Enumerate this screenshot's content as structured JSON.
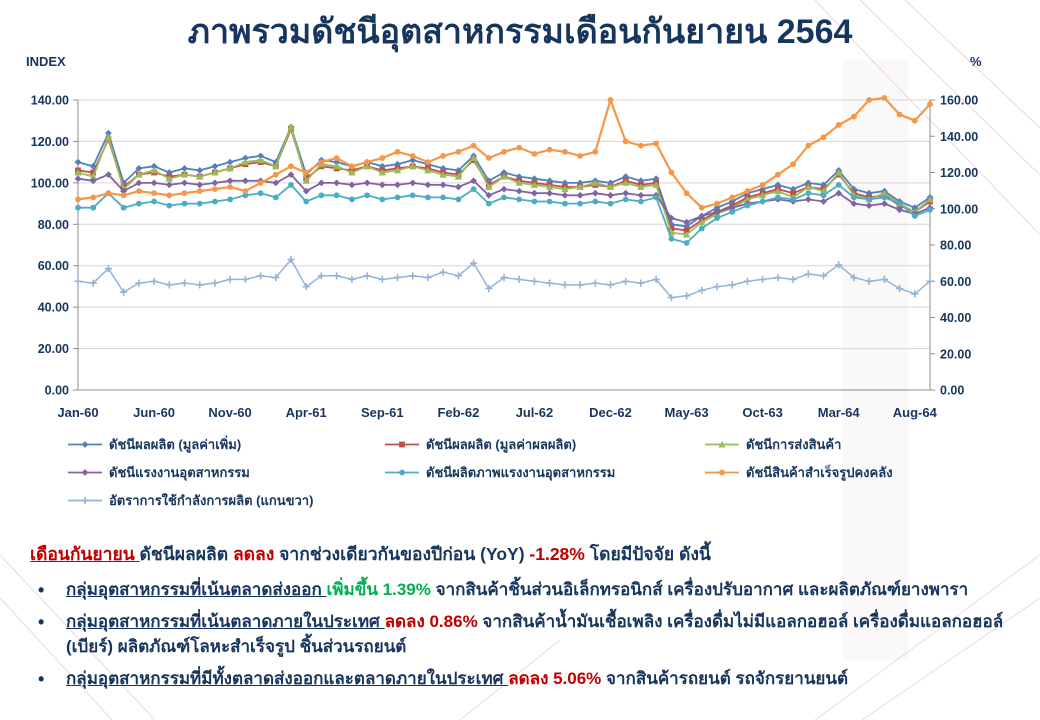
{
  "title": "ภาพรวมดัชนีอุตสาหกรรมเดือนกันยายน 2564",
  "axes": {
    "left_label": "INDEX",
    "right_label": "%",
    "left_ticks": [
      "140.00",
      "120.00",
      "100.00",
      "80.00",
      "60.00",
      "40.00",
      "20.00",
      "0.00"
    ],
    "right_ticks": [
      "160.00",
      "140.00",
      "120.00",
      "100.00",
      "80.00",
      "60.00",
      "40.00",
      "20.00",
      "0.00"
    ]
  },
  "colors": {
    "title_text": "#17365D",
    "body_text": "#17365D",
    "negative": "#C00000",
    "positive": "#00B050"
  },
  "chart_data": {
    "type": "line",
    "title": "ภาพรวมดัชนีอุตสาหกรรมเดือนกันยายน 2564",
    "xlabel": "",
    "ylabel_left": "INDEX",
    "ylabel_right": "%",
    "left_ylim": [
      0,
      140
    ],
    "right_ylim": [
      0,
      160
    ],
    "grid_step": 20,
    "grid": true,
    "legend_position": "bottom",
    "x": [
      "Jan-60",
      "Feb-60",
      "Mar-60",
      "Apr-60",
      "May-60",
      "Jun-60",
      "Jul-60",
      "Aug-60",
      "Sep-60",
      "Oct-60",
      "Nov-60",
      "Dec-60",
      "Jan-61",
      "Feb-61",
      "Mar-61",
      "Apr-61",
      "May-61",
      "Jun-61",
      "Jul-61",
      "Aug-61",
      "Sep-61",
      "Oct-61",
      "Nov-61",
      "Dec-61",
      "Jan-62",
      "Feb-62",
      "Mar-62",
      "Apr-62",
      "May-62",
      "Jun-62",
      "Jul-62",
      "Aug-62",
      "Sep-62",
      "Oct-62",
      "Nov-62",
      "Dec-62",
      "Jan-63",
      "Feb-63",
      "Mar-63",
      "Apr-63",
      "May-63",
      "Jun-63",
      "Jul-63",
      "Aug-63",
      "Sep-63",
      "Oct-63",
      "Nov-63",
      "Dec-63",
      "Jan-64",
      "Feb-64",
      "Mar-64",
      "Apr-64",
      "May-64",
      "Jun-64",
      "Jul-64",
      "Aug-64",
      "Sep-64"
    ],
    "x_tick_labels": [
      "Jan-60",
      "Jun-60",
      "Nov-60",
      "Apr-61",
      "Sep-61",
      "Feb-62",
      "Jul-62",
      "Dec-62",
      "May-63",
      "Oct-63",
      "Mar-64",
      "Aug-64"
    ],
    "series": [
      {
        "name": "ดัชนีผลผลิต (มูลค่าเพิ่ม)",
        "color": "#4F81BD",
        "marker": "diamond",
        "axis": "left",
        "width": 1.8,
        "values": [
          110,
          108,
          124,
          100,
          107,
          108,
          105,
          107,
          106,
          108,
          110,
          112,
          113,
          110,
          127,
          104,
          111,
          110,
          108,
          110,
          108,
          109,
          111,
          109,
          107,
          106,
          113,
          101,
          105,
          103,
          102,
          101,
          100,
          100,
          101,
          100,
          103,
          101,
          102,
          80,
          79,
          84,
          88,
          91,
          95,
          97,
          99,
          97,
          100,
          99,
          106,
          97,
          95,
          96,
          91,
          88,
          93
        ]
      },
      {
        "name": "ดัชนีผลผลิต (มูลค่าผลผลิต)",
        "color": "#C0504D",
        "marker": "square",
        "axis": "left",
        "width": 1.8,
        "values": [
          106,
          105,
          121,
          98,
          104,
          105,
          103,
          104,
          103,
          105,
          107,
          109,
          110,
          108,
          126,
          102,
          108,
          107,
          106,
          108,
          106,
          107,
          108,
          107,
          105,
          104,
          111,
          99,
          103,
          101,
          100,
          99,
          98,
          98,
          99,
          98,
          101,
          99,
          100,
          78,
          77,
          82,
          86,
          89,
          93,
          95,
          97,
          95,
          98,
          97,
          104,
          95,
          93,
          94,
          89,
          86,
          91
        ]
      },
      {
        "name": "ดัชนีการส่งสินค้า",
        "color": "#9BBB59",
        "marker": "triangle",
        "axis": "left",
        "width": 1.8,
        "values": [
          105,
          103,
          122,
          97,
          104,
          106,
          102,
          104,
          103,
          105,
          107,
          110,
          111,
          108,
          127,
          101,
          109,
          108,
          105,
          108,
          105,
          106,
          108,
          106,
          104,
          103,
          112,
          98,
          103,
          100,
          99,
          98,
          97,
          98,
          100,
          98,
          100,
          98,
          99,
          76,
          75,
          81,
          85,
          88,
          92,
          94,
          96,
          93,
          98,
          96,
          105,
          94,
          92,
          95,
          90,
          86,
          92
        ]
      },
      {
        "name": "ดัชนีแรงงานอุตสาหกรรม",
        "color": "#8064A2",
        "marker": "diamond",
        "axis": "left",
        "width": 1.8,
        "values": [
          102,
          101,
          104,
          96,
          100,
          100,
          99,
          100,
          99,
          100,
          101,
          101,
          101,
          100,
          104,
          96,
          100,
          100,
          99,
          100,
          99,
          99,
          100,
          99,
          99,
          98,
          101,
          94,
          97,
          96,
          95,
          95,
          94,
          94,
          95,
          94,
          95,
          94,
          94,
          83,
          81,
          84,
          86,
          88,
          90,
          91,
          92,
          91,
          92,
          91,
          95,
          90,
          89,
          90,
          87,
          85,
          88
        ]
      },
      {
        "name": "ดัชนีผลิตภาพแรงงานอุตสาหกรรม",
        "color": "#4BACC6",
        "marker": "circle",
        "axis": "left",
        "width": 1.8,
        "values": [
          88,
          88,
          95,
          88,
          90,
          91,
          89,
          90,
          90,
          91,
          92,
          94,
          95,
          93,
          99,
          91,
          94,
          94,
          92,
          94,
          92,
          93,
          94,
          93,
          93,
          92,
          97,
          90,
          93,
          92,
          91,
          91,
          90,
          90,
          91,
          90,
          92,
          91,
          93,
          73,
          71,
          78,
          83,
          86,
          89,
          91,
          93,
          92,
          95,
          94,
          99,
          93,
          92,
          93,
          90,
          84,
          87
        ]
      },
      {
        "name": "ดัชนีสินค้าสำเร็จรูปคงคลัง",
        "color": "#F79646",
        "marker": "circle",
        "axis": "left",
        "width": 2.2,
        "values": [
          92,
          93,
          95,
          94,
          96,
          95,
          94,
          95,
          96,
          97,
          98,
          96,
          100,
          104,
          108,
          105,
          110,
          112,
          108,
          110,
          112,
          115,
          113,
          110,
          113,
          115,
          118,
          112,
          115,
          117,
          114,
          116,
          115,
          113,
          115,
          140,
          120,
          118,
          119,
          105,
          95,
          88,
          90,
          93,
          96,
          99,
          104,
          109,
          118,
          122,
          128,
          132,
          140,
          141,
          133,
          130,
          138
        ]
      },
      {
        "name": "อัตราการใช้กำลังการผลิต (แกนขวา)",
        "color": "#95B3D7",
        "marker": "plus",
        "axis": "right",
        "width": 1.5,
        "values": [
          60,
          59,
          67,
          54,
          59,
          60,
          58,
          59,
          58,
          59,
          61,
          61,
          63,
          62,
          72,
          57,
          63,
          63,
          61,
          63,
          61,
          62,
          63,
          62,
          65,
          63,
          70,
          56,
          62,
          61,
          60,
          59,
          58,
          58,
          59,
          58,
          60,
          59,
          61,
          51,
          52,
          55,
          57,
          58,
          60,
          61,
          62,
          61,
          64,
          63,
          69,
          62,
          60,
          61,
          56,
          53,
          60
        ]
      }
    ]
  },
  "summary": {
    "intro": [
      {
        "text": "เดือนกันยายน ",
        "style": "red-underline"
      },
      {
        "text": "ดัชนีผลผลิต ",
        "style": "blue"
      },
      {
        "text": "ลดลง ",
        "style": "red"
      },
      {
        "text": "จากช่วงเดียวกันของปีก่อน (YoY) ",
        "style": "blue"
      },
      {
        "text": "-1.28% ",
        "style": "red"
      },
      {
        "text": "โดยมีปัจจัย ดังนี้",
        "style": "blue"
      }
    ],
    "bullets": [
      [
        {
          "text": "กลุ่มอุตสาหกรรมที่เน้นตลาดส่งออก ",
          "style": "blue-underline"
        },
        {
          "text": "เพิ่มขึ้น 1.39% ",
          "style": "green"
        },
        {
          "text": "จากสินค้าชิ้นส่วนอิเล็กทรอนิกส์ เครื่องปรับอากาศ และผลิตภัณฑ์ยางพารา",
          "style": "blue"
        }
      ],
      [
        {
          "text": "กลุ่มอุตสาหกรรมที่เน้นตลาดภายในประเทศ ",
          "style": "blue-underline"
        },
        {
          "text": "ลดลง 0.86% ",
          "style": "red"
        },
        {
          "text": "จากสินค้าน้ำมันเชื้อเพลิง เครื่องดื่มไม่มีแอลกอฮอล์ เครื่องดื่มแอลกอฮอล์ (เบียร์) ผลิตภัณฑ์โลหะสำเร็จรูป ชิ้นส่วนรถยนต์",
          "style": "blue"
        }
      ],
      [
        {
          "text": "กลุ่มอุตสาหกรรมที่มีทั้งตลาดส่งออกและตลาดภายในประเทศ ",
          "style": "blue-underline"
        },
        {
          "text": "ลดลง 5.06% ",
          "style": "red"
        },
        {
          "text": "จากสินค้ารถยนต์ รถจักรยานยนต์",
          "style": "blue"
        }
      ]
    ]
  }
}
